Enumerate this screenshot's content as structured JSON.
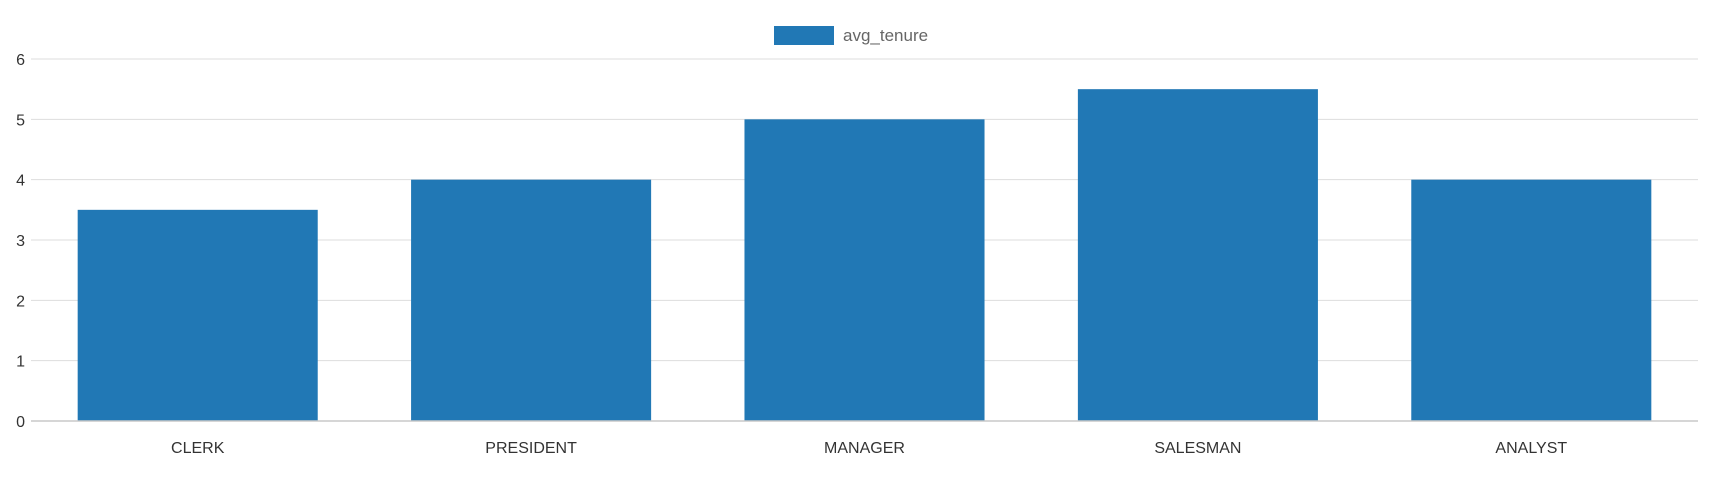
{
  "chart_data": {
    "type": "bar",
    "categories": [
      "CLERK",
      "PRESIDENT",
      "MANAGER",
      "SALESMAN",
      "ANALYST"
    ],
    "series": [
      {
        "name": "avg_tenure",
        "values": [
          3.5,
          4,
          5,
          5.5,
          4
        ],
        "color": "#2178b5"
      }
    ],
    "yticks": [
      "0",
      "1",
      "2",
      "3",
      "4",
      "5",
      "6"
    ],
    "ylim": [
      0,
      6
    ],
    "grid": true,
    "legend_position": "top-center",
    "title": "",
    "xlabel": "",
    "ylabel": ""
  }
}
